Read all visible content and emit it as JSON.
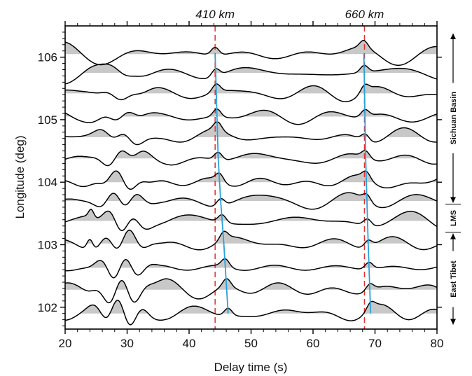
{
  "chart_data": {
    "type": "line",
    "title": "",
    "xlabel": "Delay time (s)",
    "ylabel": "Longitude (deg)",
    "xlim": [
      20,
      80
    ],
    "ylim": [
      101.65,
      106.5
    ],
    "x_ticks": [
      20,
      30,
      40,
      50,
      60,
      70,
      80
    ],
    "x_tick_labels": [
      "20",
      "30",
      "40",
      "50",
      "60",
      "70",
      "80"
    ],
    "y_ticks": [
      102,
      103,
      104,
      105,
      106
    ],
    "y_tick_labels": [
      "102",
      "103",
      "104",
      "105",
      "106"
    ],
    "grid": false,
    "trace_baselines_deg": [
      106.05,
      105.75,
      105.42,
      105.05,
      104.72,
      104.38,
      104.0,
      103.7,
      103.38,
      103.02,
      102.63,
      102.28,
      101.9
    ],
    "fill_positive": true,
    "fill_color": "#c8c8c8",
    "trace_color": "#000000",
    "reference_lines": [
      {
        "label": "410 km",
        "x": 44.2,
        "color": "#e03030",
        "style": "dashed"
      },
      {
        "label": "660 km",
        "x": 68.3,
        "color": "#e03030",
        "style": "dashed"
      }
    ],
    "picked_arrivals": [
      {
        "name": "410 km",
        "color": "#2aa0dc",
        "points": [
          [
            44.2,
            106.05
          ],
          [
            44.7,
            104.38
          ],
          [
            45.1,
            103.7
          ],
          [
            45.6,
            103.02
          ],
          [
            46.3,
            101.9
          ]
        ]
      },
      {
        "name": "660 km",
        "color": "#2aa0dc",
        "points": [
          [
            68.2,
            106.05
          ],
          [
            68.5,
            104.38
          ],
          [
            68.9,
            103.0
          ],
          [
            69.3,
            101.9
          ]
        ]
      }
    ],
    "regions": [
      {
        "label": "Sichuan Basin",
        "from": 106.4,
        "to": 103.65
      },
      {
        "label": "LMS",
        "from": 103.65,
        "to": 103.2
      },
      {
        "label": "East Tibet",
        "from": 103.2,
        "to": 101.7
      }
    ]
  }
}
